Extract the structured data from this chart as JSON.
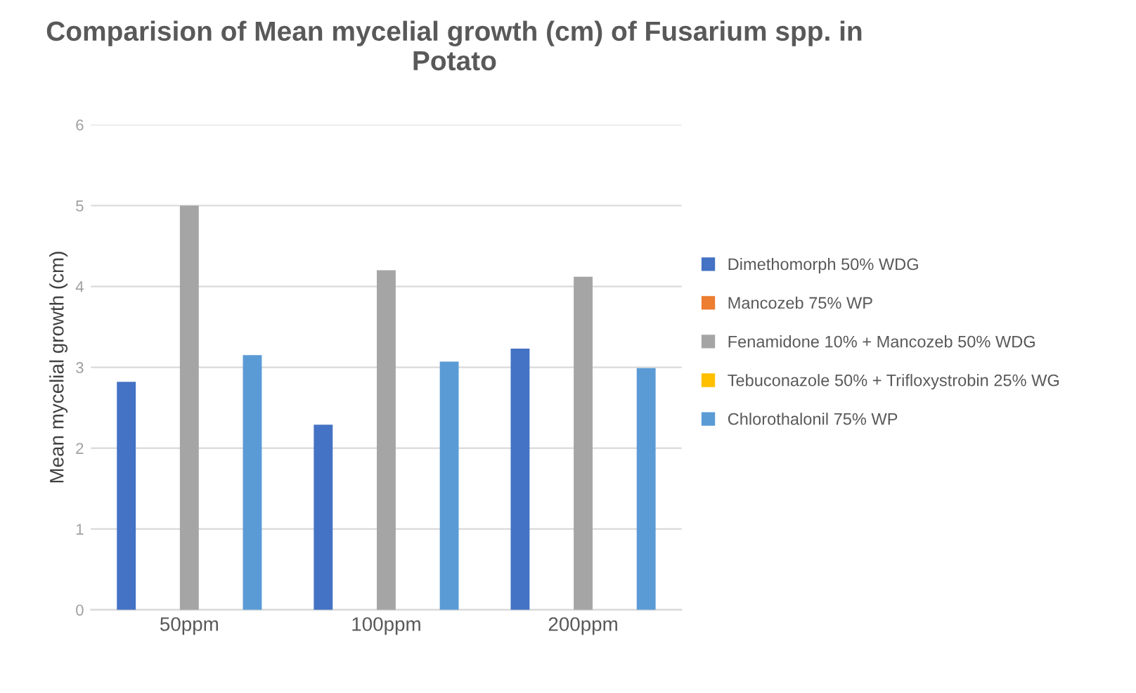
{
  "chart_data": {
    "type": "bar",
    "title": "Comparision of Mean mycelial growth (cm) of Fusarium spp. in Potato",
    "ylabel": "Mean mycelial growth (cm)",
    "categories": [
      "50ppm",
      "100ppm",
      "200ppm"
    ],
    "series": [
      {
        "name": "Dimethomorph 50% WDG",
        "color": "#4472c4",
        "values": [
          2.82,
          2.29,
          3.23
        ]
      },
      {
        "name": "Mancozeb 75% WP",
        "color": "#ed7d31",
        "values": [
          0,
          0,
          0
        ]
      },
      {
        "name": "Fenamidone 10% + Mancozeb 50% WDG",
        "color": "#a5a5a5",
        "values": [
          5.0,
          4.2,
          4.12
        ]
      },
      {
        "name": "Tebuconazole 50% + Trifloxystrobin 25% WG",
        "color": "#ffc000",
        "values": [
          0,
          0,
          0
        ]
      },
      {
        "name": "Chlorothalonil 75% WP",
        "color": "#5b9bd5",
        "values": [
          3.15,
          3.07,
          2.99
        ]
      }
    ],
    "ylim": [
      0,
      6
    ],
    "yticks": [
      0,
      1,
      2,
      3,
      4,
      5,
      6
    ],
    "grid": "y",
    "legend": "right"
  }
}
